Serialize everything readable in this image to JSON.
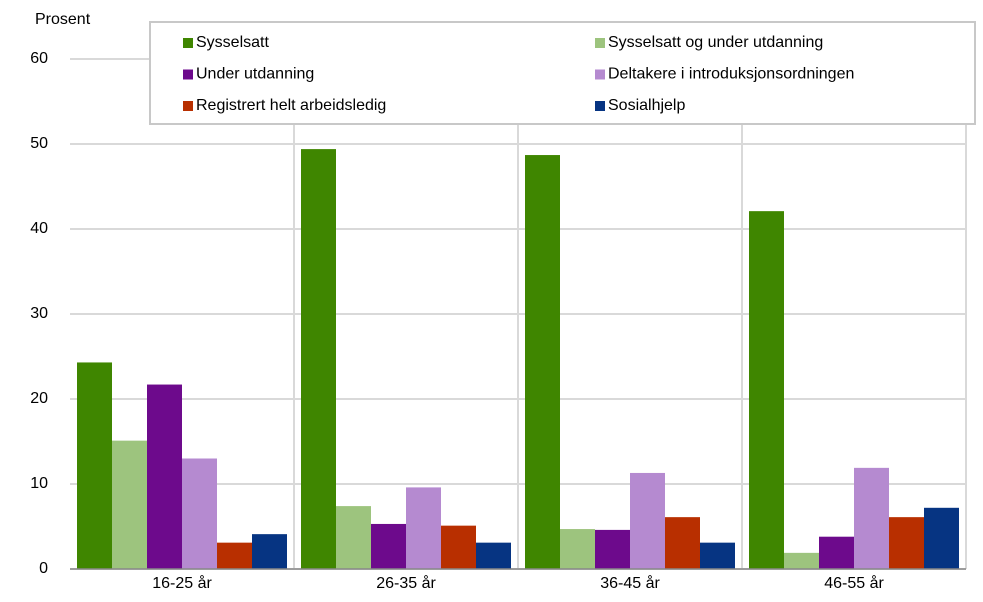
{
  "chart_data": {
    "type": "bar",
    "y_label": "Prosent",
    "categories": [
      "16-25 år",
      "26-35 år",
      "36-45 år",
      "46-55 år"
    ],
    "series": [
      {
        "name": "Sysselsatt",
        "color": "#3f8600",
        "values": [
          24.3,
          49.4,
          48.7,
          42.1
        ]
      },
      {
        "name": "Sysselsatt og under utdanning",
        "color": "#9dc47e",
        "values": [
          15.1,
          7.4,
          4.7,
          1.9
        ]
      },
      {
        "name": "Under utdanning",
        "color": "#6d0a8c",
        "values": [
          21.7,
          5.3,
          4.6,
          3.8
        ]
      },
      {
        "name": "Deltakere i introduksjonsordningen",
        "color": "#b58ad0",
        "values": [
          13,
          9.6,
          11.3,
          11.9
        ]
      },
      {
        "name": "Registrert helt arbeidsledig",
        "color": "#b82f00",
        "values": [
          3.1,
          5.1,
          6.1,
          6.1
        ]
      },
      {
        "name": "Sosialhjelp",
        "color": "#063482",
        "values": [
          4.1,
          3.1,
          3.1,
          7.2
        ]
      }
    ],
    "ylim": [
      0,
      60
    ],
    "yticks": [
      0,
      10,
      20,
      30,
      40,
      50,
      60
    ],
    "grid": true
  }
}
